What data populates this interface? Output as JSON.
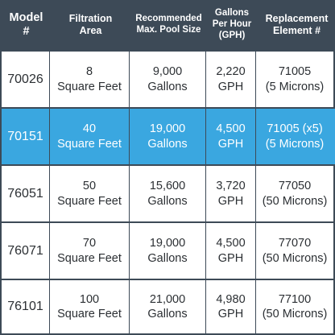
{
  "table": {
    "headers": [
      "Model\n#",
      "Filtration\nArea",
      "Recommended\nMax. Pool Size",
      "Gallons\nPer Hour\n(GPH)",
      "Replacement\nElement #"
    ],
    "rows": [
      {
        "model": "70026",
        "area": "8\nSquare Feet",
        "pool_size": "9,000\nGallons",
        "gph": "2,220\nGPH",
        "element": "71005\n(5 Microns)",
        "highlighted": false
      },
      {
        "model": "70151",
        "area": "40\nSquare Feet",
        "pool_size": "19,000\nGallons",
        "gph": "4,500\nGPH",
        "element": "71005 (x5)\n(5 Microns)",
        "highlighted": true
      },
      {
        "model": "76051",
        "area": "50\nSquare Feet",
        "pool_size": "15,600\nGallons",
        "gph": "3,720\nGPH",
        "element": "77050\n(50 Microns)",
        "highlighted": false
      },
      {
        "model": "76071",
        "area": "70\nSquare Feet",
        "pool_size": "19,000\nGallons",
        "gph": "4,500\nGPH",
        "element": "77070\n(50 Microns)",
        "highlighted": false
      },
      {
        "model": "76101",
        "area": "100\nSquare Feet",
        "pool_size": "21,000\nGallons",
        "gph": "4,980\nGPH",
        "element": "77100\n(50 Microns)",
        "highlighted": false
      }
    ]
  },
  "colors": {
    "header_background": "#3d4a57",
    "highlight_background": "#3aa7e0",
    "text_dark": "#2b2f33",
    "text_light": "#ffffff"
  }
}
